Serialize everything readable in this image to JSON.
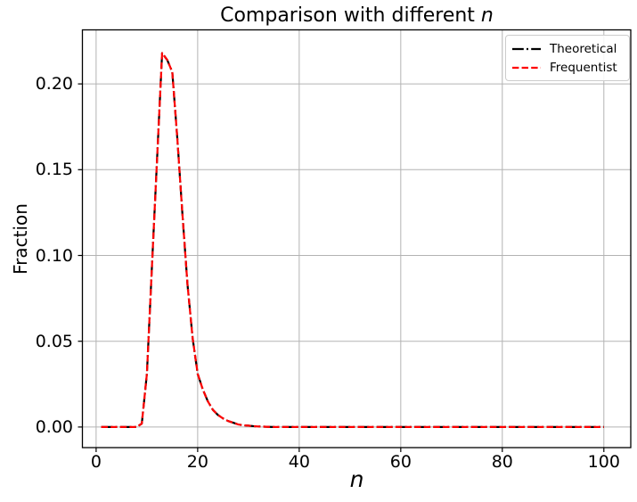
{
  "figure": {
    "background": "#ffffff"
  },
  "chart_data": {
    "type": "line",
    "title_prefix": "Comparison with different ",
    "title_var": "n",
    "xlabel": "n",
    "ylabel": "Fraction",
    "xlim": [
      -2.7,
      105.3
    ],
    "ylim": [
      -0.012,
      0.2315
    ],
    "grid": true,
    "grid_color": "#b3b3b3",
    "spine_color": "#000000",
    "x_ticks": [
      0,
      20,
      40,
      60,
      80,
      100
    ],
    "x_tick_labels": [
      "0",
      "20",
      "40",
      "60",
      "80",
      "100"
    ],
    "y_tick_values": [
      0.0,
      0.05,
      0.1,
      0.15,
      0.2
    ],
    "y_tick_labels": [
      "0.00",
      "0.05",
      "0.10",
      "0.15",
      "0.20"
    ],
    "legend_position": "upper right",
    "x": [
      1,
      2,
      3,
      4,
      5,
      6,
      7,
      8,
      9,
      10,
      11,
      12,
      13,
      14,
      15,
      16,
      17,
      18,
      19,
      20,
      21,
      22,
      23,
      24,
      25,
      26,
      27,
      28,
      29,
      30,
      31,
      32,
      33,
      34,
      35,
      40,
      45,
      50,
      55,
      60,
      65,
      70,
      75,
      80,
      85,
      90,
      95,
      100
    ],
    "series": [
      {
        "name": "Theoretical",
        "color": "#000000",
        "linestyle": "dashdot",
        "linewidth": 2.2,
        "values": [
          0,
          0,
          0,
          0,
          0,
          0,
          0,
          0,
          0.002,
          0.031,
          0.094,
          0.156,
          0.218,
          0.214,
          0.207,
          0.168,
          0.124,
          0.083,
          0.052,
          0.031,
          0.022,
          0.015,
          0.01,
          0.007,
          0.005,
          0.0035,
          0.0025,
          0.0015,
          0.001,
          0.0008,
          0.0005,
          0.0003,
          0.0002,
          0.0001,
          0,
          0,
          0,
          0,
          0,
          0,
          0,
          0,
          0,
          0,
          0,
          0,
          0,
          0
        ]
      },
      {
        "name": "Frequentist",
        "color": "#ff0000",
        "linestyle": "dashed",
        "linewidth": 2.2,
        "values": [
          0,
          0,
          0,
          0,
          0,
          0,
          0,
          0,
          0.002,
          0.031,
          0.094,
          0.156,
          0.218,
          0.214,
          0.207,
          0.168,
          0.124,
          0.083,
          0.052,
          0.031,
          0.022,
          0.015,
          0.01,
          0.007,
          0.005,
          0.0035,
          0.0025,
          0.0015,
          0.001,
          0.0008,
          0.0005,
          0.0003,
          0.0002,
          0.0001,
          0,
          0,
          0,
          0,
          0,
          0,
          0,
          0,
          0,
          0,
          0,
          0,
          0,
          0
        ]
      }
    ]
  }
}
